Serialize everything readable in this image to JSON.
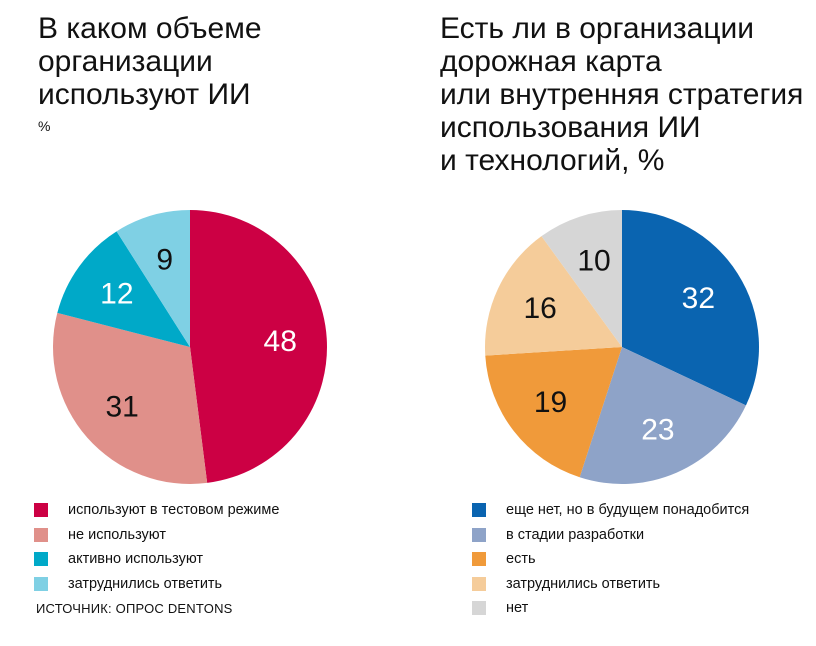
{
  "chart_data": [
    {
      "type": "pie",
      "title_lines": [
        "В каком объеме",
        "организации",
        "используют ИИ"
      ],
      "unit": "%",
      "slices": [
        {
          "label": "используют в тестовом режиме",
          "value": 48,
          "color": "#cc0044",
          "label_color": "#ffffff"
        },
        {
          "label": "не используют",
          "value": 31,
          "color": "#e0908a",
          "label_color": "#111111"
        },
        {
          "label": "активно используют",
          "value": 12,
          "color": "#00a9c8",
          "label_color": "#ffffff"
        },
        {
          "label": "затруднились ответить",
          "value": 9,
          "color": "#7fd0e4",
          "label_color": "#111111"
        }
      ]
    },
    {
      "type": "pie",
      "title_lines": [
        "Есть ли в организации",
        "дорожная карта",
        "или внутренняя стратегия",
        "использования ИИ",
        "и технологий, %"
      ],
      "slices": [
        {
          "label": "еще нет, но в будущем понадобится",
          "value": 32,
          "color": "#0a64b0",
          "label_color": "#ffffff"
        },
        {
          "label": "в стадии разработки",
          "value": 23,
          "color": "#8ea3c8",
          "label_color": "#ffffff"
        },
        {
          "label": "есть",
          "value": 19,
          "color": "#f09a3a",
          "label_color": "#111111"
        },
        {
          "label": "затруднились ответить",
          "value": 16,
          "color": "#f5cc9a",
          "label_color": "#111111"
        },
        {
          "label": "нет",
          "value": 10,
          "color": "#d6d6d6",
          "label_color": "#111111"
        }
      ]
    }
  ],
  "source": "ИСТОЧНИК: ОПРОС DENTONS"
}
